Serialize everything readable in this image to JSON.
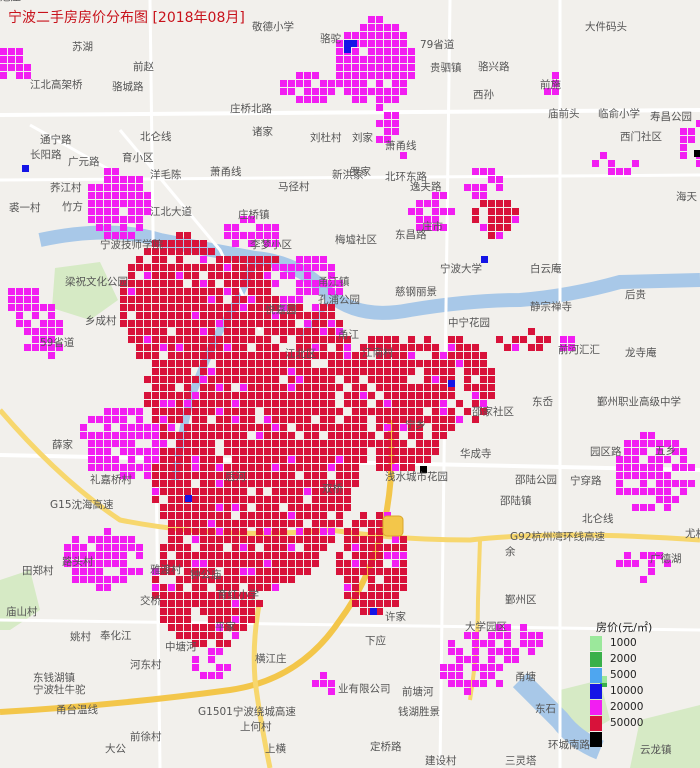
{
  "title": "宁波二手房房价分布图 [2018年08月]",
  "legend": {
    "title": "房价(元/㎡)",
    "items": [
      {
        "value": "1000",
        "color": "#9be89b"
      },
      {
        "value": "2000",
        "color": "#39b04a"
      },
      {
        "value": "5000",
        "color": "#4ea6f0"
      },
      {
        "value": "10000",
        "color": "#1414e6"
      },
      {
        "value": "20000",
        "color": "#f21ef2"
      },
      {
        "value": "50000",
        "color": "#d8123a"
      },
      {
        "value": "",
        "color": "#000000"
      }
    ]
  },
  "place_labels": [
    "敬德小学",
    "骆驼",
    "79省道",
    "大件码头",
    "苏湖",
    "前赵",
    "贵驷镇",
    "骆兴路",
    "前施",
    "江北高架桥",
    "骆城路",
    "西孙",
    "庙前头",
    "临俞小学",
    "寿昌公园",
    "庄桥北路",
    "诸家",
    "刘杜村",
    "刘家",
    "通宁路",
    "育小区",
    "北仑线",
    "萧甬线",
    "西门社区",
    "长阳路",
    "广元路",
    "洋毛陈",
    "萧甬线",
    "罗家",
    "北环东路",
    "马径村",
    "新洪家",
    "逸夫路",
    "荞江村",
    "竹方",
    "裘一村",
    "江北大道",
    "庄桥镇",
    "庄市",
    "海天",
    "宁波技师学院",
    "李梦小区",
    "梅墟社区",
    "东昌路",
    "宁波大学",
    "白云庵",
    "梁祝文化公园",
    "甬江镇",
    "孔浦公园",
    "慈钢丽景",
    "后贵",
    "静宗禅寺",
    "乡成村",
    "悦嘉园",
    "中宁花园",
    "甬江",
    "前河汇汇",
    "龙寺庵",
    "江北区",
    "江南村",
    "59省道",
    "邵家社区",
    "鄞州职业高级中学",
    "东岙",
    "薛家",
    "宁乡",
    "后河",
    "华成寺",
    "园区路",
    "五乡",
    "礼嘉桥村",
    "邵陆公园",
    "宁穿路",
    "双桥",
    "浅水城市花园",
    "邵陆镇",
    "G15沈海高速",
    "北仑线",
    "G92杭州湾环线高速",
    "尤村",
    "余",
    "田郑村",
    "路头村",
    "雅渡村",
    "钟公庙",
    "广德湖",
    "庙山村",
    "交桥",
    "育红小学",
    "鄞州区",
    "姚村",
    "奉化江",
    "平家",
    "大学园区",
    "中塘河",
    "许家",
    "下应",
    "河东村",
    "横江庄",
    "甬塘",
    "东钱湖镇",
    "宁波牡牛驼",
    "业有限公司",
    "前塘河",
    "甬台温线",
    "G1501宁波绕城高速",
    "东石",
    "钱湖胜景",
    "前徐村",
    "上何村",
    "环城南路",
    "大公",
    "上横",
    "定桥路",
    "云龙镇",
    "三灵塔",
    "建设村",
    "冠庄"
  ]
}
